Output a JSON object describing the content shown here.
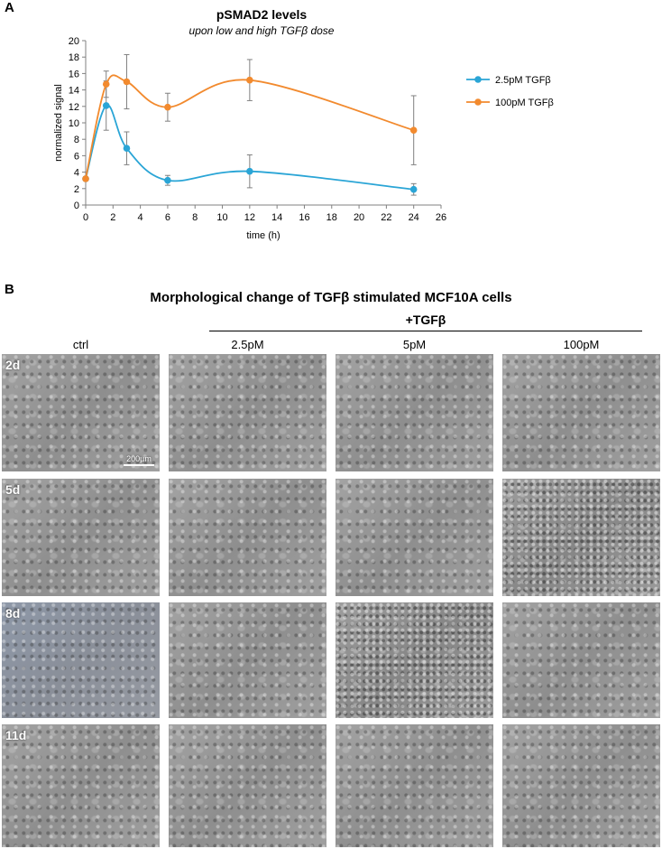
{
  "panel_a_letter": "A",
  "panel_b_letter": "B",
  "chart_data": {
    "type": "line",
    "title": "pSMAD2 levels",
    "subtitle": "upon low and high TGFβ dose",
    "xlabel": "time (h)",
    "ylabel": "normalized signal",
    "xlim": [
      0,
      26
    ],
    "ylim": [
      0,
      20
    ],
    "xticks": [
      0,
      2,
      4,
      6,
      8,
      10,
      12,
      14,
      16,
      18,
      20,
      22,
      24,
      26
    ],
    "yticks": [
      0,
      2,
      4,
      6,
      8,
      10,
      12,
      14,
      16,
      18,
      20
    ],
    "grid": false,
    "legend_position": "right",
    "series": [
      {
        "name": "2.5pM TGFβ",
        "color": "#2aa5d6",
        "x": [
          0,
          1.5,
          3,
          6,
          12,
          24
        ],
        "y": [
          3.2,
          12.1,
          6.9,
          3.0,
          4.1,
          1.9
        ],
        "err": [
          0,
          3.0,
          2.0,
          0.6,
          2.0,
          0.7
        ]
      },
      {
        "name": "100pM TGFβ",
        "color": "#f28a2e",
        "x": [
          0,
          1.5,
          3,
          6,
          12,
          24
        ],
        "y": [
          3.2,
          14.7,
          15.0,
          11.9,
          15.2,
          9.1
        ],
        "err": [
          0,
          1.6,
          3.3,
          1.7,
          2.5,
          4.2
        ]
      }
    ]
  },
  "panel_b": {
    "title": "Morphological change of TGFβ stimulated MCF10A cells",
    "treatment_header": "+TGFβ",
    "columns": [
      "ctrl",
      "2.5pM",
      "5pM",
      "100pM"
    ],
    "rows": [
      "2d",
      "5d",
      "8d",
      "11d"
    ],
    "scalebar_label": "200µm"
  }
}
